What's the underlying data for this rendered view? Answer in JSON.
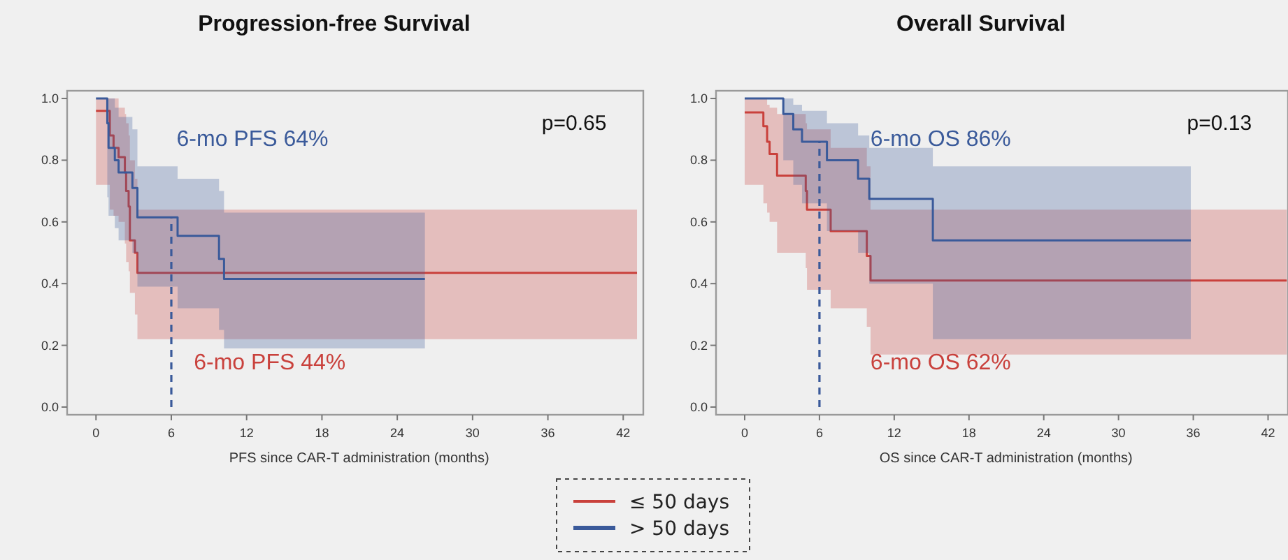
{
  "chart_data": [
    {
      "type": "step",
      "title": "Progression-free Survival",
      "xlabel": "PFS since CAR-T administration (months)",
      "xlim": [
        -2.3,
        43.6
      ],
      "xticks": [
        0,
        6,
        12,
        18,
        24,
        30,
        36,
        42
      ],
      "ylim": [
        -0.025,
        1.025
      ],
      "yticks": [
        {
          "value": 0,
          "label": "0.0"
        },
        {
          "value": 0.2,
          "label": "0.2"
        },
        {
          "value": 0.4,
          "label": "0.4"
        },
        {
          "value": 0.6,
          "label": "0.6"
        },
        {
          "value": 0.8,
          "label": "0.8"
        },
        {
          "value": 1,
          "label": "1.0"
        }
      ],
      "legend": "bottom",
      "annotations": [
        "6-mo PFS 64%",
        "6-mo PFS 44%",
        "p=0.65"
      ],
      "ref_lines": [
        {
          "axis": "x",
          "value": 6,
          "color": "#3a5a9a",
          "line_style": "dashed"
        }
      ],
      "series": [
        {
          "name": "≤ 50 days",
          "color": "#c9413c",
          "x": [
            0,
            1.1,
            1.4,
            1.8,
            2.3,
            2.4,
            2.6,
            2.7,
            3.1,
            3.3,
            43.1
          ],
          "values": [
            0.96,
            0.88,
            0.84,
            0.81,
            0.76,
            0.7,
            0.65,
            0.54,
            0.5,
            0.435,
            0.435
          ],
          "lower": [
            0.72,
            0.64,
            0.62,
            0.6,
            0.53,
            0.47,
            0.44,
            0.37,
            0.3,
            0.22,
            0.22
          ],
          "upper": [
            1,
            1,
            1,
            0.97,
            0.95,
            0.92,
            0.88,
            0.8,
            0.74,
            0.64,
            0.64
          ]
        },
        {
          "name": "> 50 days",
          "color": "#3a5a9a",
          "x": [
            0,
            0.9,
            1.0,
            1.5,
            1.8,
            2.9,
            3.3,
            6.5,
            9.8,
            10.2,
            26.2
          ],
          "values": [
            1,
            0.92,
            0.84,
            0.8,
            0.76,
            0.71,
            0.615,
            0.555,
            0.48,
            0.415,
            0.415
          ],
          "lower": [
            1,
            0.68,
            0.62,
            0.58,
            0.54,
            0.5,
            0.39,
            0.32,
            0.25,
            0.19,
            0.19
          ],
          "upper": [
            1,
            1,
            1,
            0.97,
            0.94,
            0.9,
            0.78,
            0.74,
            0.7,
            0.63,
            0.63
          ]
        }
      ]
    },
    {
      "type": "step",
      "title": "Overall Survival",
      "xlabel": "OS since CAR-T administration (months)",
      "xlim": [
        -2.3,
        43.6
      ],
      "xticks": [
        0,
        6,
        12,
        18,
        24,
        30,
        36,
        42
      ],
      "ylim": [
        -0.025,
        1.025
      ],
      "yticks": [
        {
          "value": 0,
          "label": "0.0"
        },
        {
          "value": 0.2,
          "label": "0.2"
        },
        {
          "value": 0.4,
          "label": "0.4"
        },
        {
          "value": 0.6,
          "label": "0.6"
        },
        {
          "value": 0.8,
          "label": "0.8"
        },
        {
          "value": 1,
          "label": "1.0"
        }
      ],
      "annotations": [
        "6-mo OS 86%",
        "6-mo OS 62%",
        "p=0.13"
      ],
      "ref_lines": [
        {
          "axis": "x",
          "value": 6,
          "color": "#3a5a9a",
          "line_style": "dashed"
        }
      ],
      "series": [
        {
          "color": "#c9413c",
          "x": [
            0,
            1.5,
            1.8,
            2.0,
            2.6,
            4.9,
            5.0,
            6.9,
            9.8,
            10.1,
            43.5
          ],
          "values": [
            0.955,
            0.91,
            0.86,
            0.82,
            0.75,
            0.7,
            0.64,
            0.57,
            0.49,
            0.41,
            0.41
          ],
          "lower": [
            0.72,
            0.66,
            0.63,
            0.6,
            0.5,
            0.45,
            0.38,
            0.32,
            0.26,
            0.17,
            0.17
          ],
          "upper": [
            1,
            1,
            0.98,
            0.97,
            0.95,
            0.92,
            0.9,
            0.84,
            0.78,
            0.64,
            0.64
          ]
        },
        {
          "color": "#3a5a9a",
          "x": [
            0,
            3.1,
            3.9,
            4.6,
            6.6,
            9.1,
            10.0,
            15.1,
            35.8
          ],
          "values": [
            1,
            0.95,
            0.9,
            0.86,
            0.8,
            0.74,
            0.675,
            0.54,
            0.54
          ],
          "lower": [
            1,
            0.8,
            0.72,
            0.66,
            0.57,
            0.5,
            0.4,
            0.22,
            0.22
          ],
          "upper": [
            1,
            1,
            0.98,
            0.96,
            0.92,
            0.88,
            0.84,
            0.78,
            0.78
          ]
        }
      ]
    }
  ]
}
